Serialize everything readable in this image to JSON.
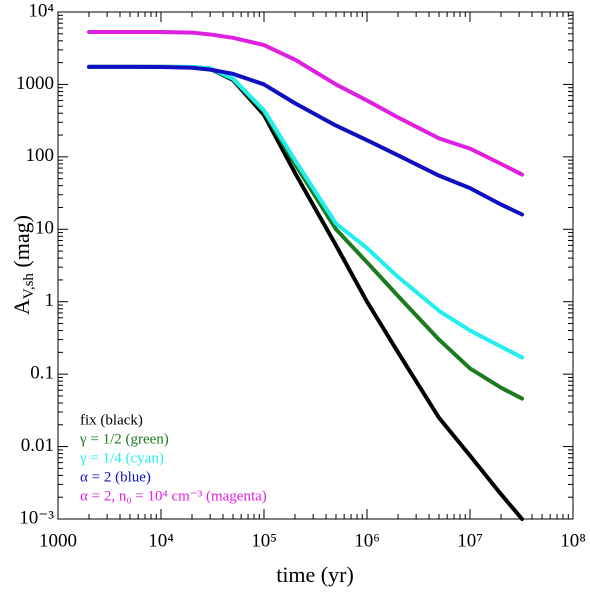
{
  "chart_data": {
    "type": "line",
    "xlabel": "time (yr)",
    "ylabel": {
      "main": "A",
      "sub": "V,sh",
      "unit": " (mag)"
    },
    "xscale": "log",
    "yscale": "log",
    "xlim": [
      1000,
      100000000
    ],
    "ylim": [
      0.001,
      10000
    ],
    "xticks": [
      1000,
      {
        "value": 10000,
        "label": "10⁴"
      },
      {
        "value": 100000,
        "label": "10⁵"
      },
      {
        "value": 1000000,
        "label": "10⁶"
      },
      {
        "value": 10000000,
        "label": "10⁷"
      },
      {
        "value": 100000000,
        "label": "10⁸"
      }
    ],
    "yticks": [
      {
        "value": 0.001,
        "label": "10⁻³"
      },
      0.01,
      0.1,
      1,
      10,
      100,
      1000,
      {
        "value": 10000,
        "label": "10⁴"
      }
    ],
    "legend": "lower left",
    "x": [
      2000,
      3000,
      5000,
      10000,
      20000,
      30000,
      50000,
      100000,
      200000,
      500000,
      1000000,
      2000000,
      5000000,
      10000000,
      20000000,
      32000000
    ],
    "series": [
      {
        "name": "fix (black)",
        "color": "#000000",
        "values": [
          1750,
          1750,
          1750,
          1750,
          1740,
          1650,
          1150,
          380,
          60,
          6,
          1,
          0.2,
          0.025,
          0.0075,
          0.0022,
          0.001
        ]
      },
      {
        "name": "γ = 1/2 (green)",
        "color": "#1e7a1e",
        "values": [
          1750,
          1750,
          1750,
          1750,
          1740,
          1660,
          1180,
          420,
          80,
          10,
          3.5,
          1.2,
          0.3,
          0.12,
          0.065,
          0.046
        ]
      },
      {
        "name": "γ = 1/4 (cyan)",
        "color": "#22eeee",
        "values": [
          1750,
          1750,
          1750,
          1750,
          1740,
          1670,
          1200,
          440,
          90,
          12,
          5.5,
          2.2,
          0.75,
          0.4,
          0.24,
          0.17
        ]
      },
      {
        "name": "α = 2 (blue)",
        "color": "#1010c0",
        "values": [
          1750,
          1750,
          1750,
          1740,
          1700,
          1600,
          1400,
          1000,
          550,
          270,
          170,
          105,
          55,
          37,
          22,
          16
        ]
      },
      {
        "name": "α = 2, n₀ = 10⁴ cm⁻³ (magenta)",
        "color": "#e020e0",
        "values": [
          5300,
          5300,
          5300,
          5300,
          5200,
          4900,
          4400,
          3500,
          2200,
          1000,
          600,
          350,
          180,
          130,
          80,
          57
        ]
      }
    ]
  }
}
